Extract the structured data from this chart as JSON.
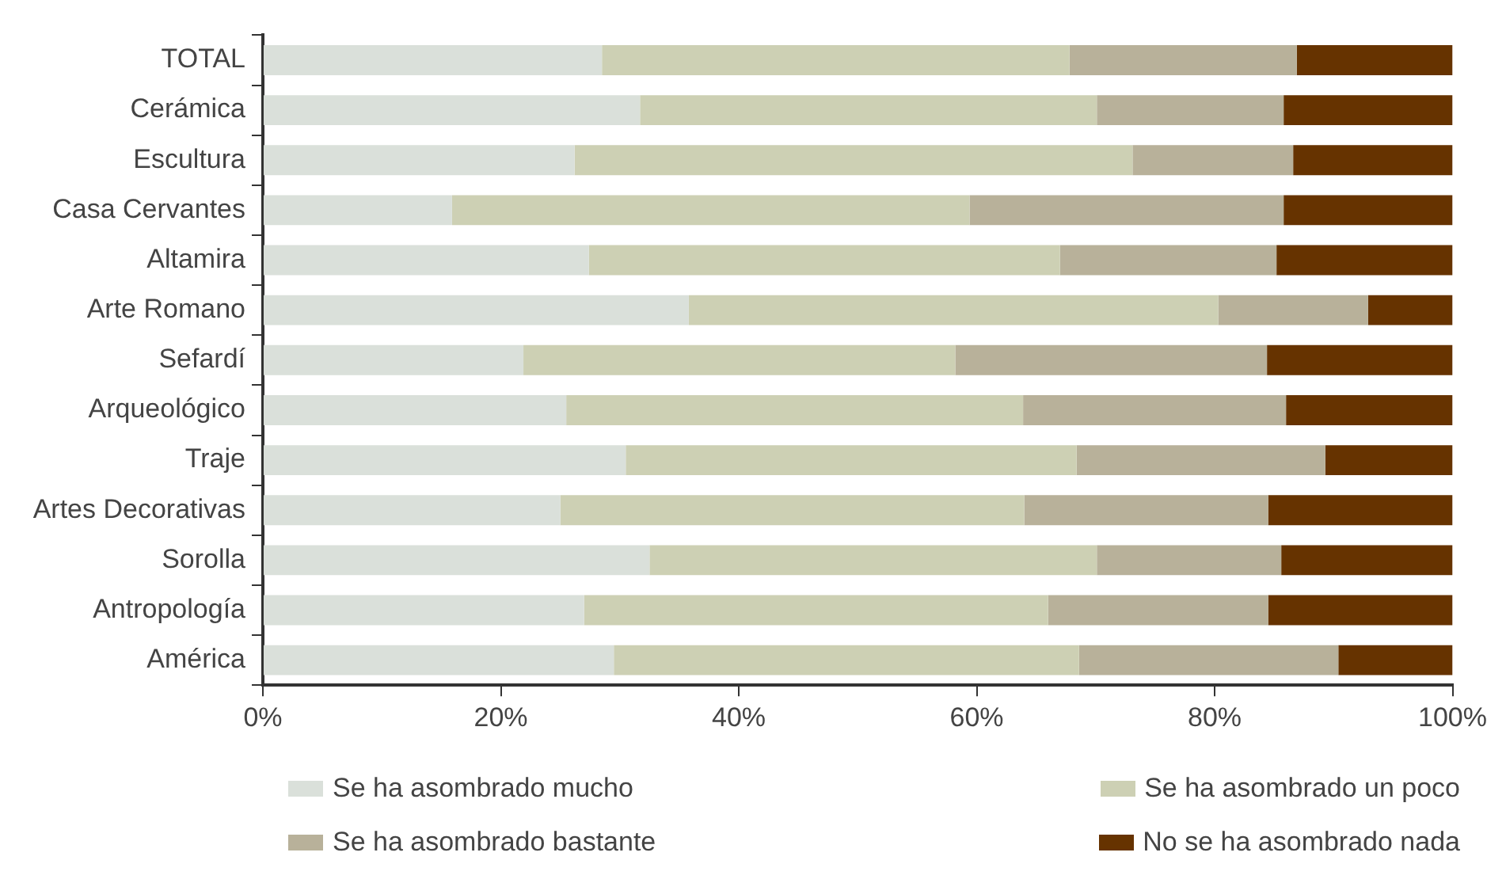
{
  "chart_data": {
    "type": "bar",
    "orientation": "horizontal",
    "stacked": true,
    "categories": [
      "TOTAL",
      "Cerámica",
      "Escultura",
      "Casa Cervantes",
      "Altamira",
      "Arte Romano",
      "Sefardí",
      "Arqueológico",
      "Traje",
      "Artes Decorativas",
      "Sorolla",
      "Antropología",
      "América"
    ],
    "series": [
      {
        "name": "Se ha asombrado mucho",
        "color": "#dae0da",
        "values": [
          28.5,
          31.7,
          26.2,
          15.9,
          27.4,
          35.8,
          21.9,
          25.5,
          30.5,
          25.0,
          32.5,
          27.0,
          29.5
        ]
      },
      {
        "name": "Se ha asombrado un poco",
        "color": "#cdd0b4",
        "values": [
          39.3,
          38.4,
          46.9,
          43.5,
          39.6,
          44.5,
          36.3,
          38.4,
          37.9,
          39.0,
          37.6,
          39.0,
          39.1
        ]
      },
      {
        "name": "Se ha asombrado bastante",
        "color": "#b8b19a",
        "values": [
          19.1,
          15.7,
          13.5,
          26.4,
          18.2,
          12.6,
          26.2,
          22.1,
          20.9,
          20.5,
          15.5,
          18.5,
          21.8
        ]
      },
      {
        "name": "No se ha asombrado nada",
        "color": "#663300",
        "values": [
          13.1,
          14.2,
          13.4,
          14.2,
          14.8,
          7.1,
          15.6,
          14.0,
          10.7,
          15.5,
          14.4,
          15.5,
          9.6
        ]
      }
    ],
    "xlim": [
      0,
      100
    ],
    "xticks": [
      {
        "value": 0,
        "label": "0%"
      },
      {
        "value": 20,
        "label": "20%"
      },
      {
        "value": 40,
        "label": "40%"
      },
      {
        "value": 60,
        "label": "60%"
      },
      {
        "value": 80,
        "label": "80%"
      },
      {
        "value": 100,
        "label": "100%"
      }
    ],
    "grid": false,
    "legend": "bottom"
  }
}
